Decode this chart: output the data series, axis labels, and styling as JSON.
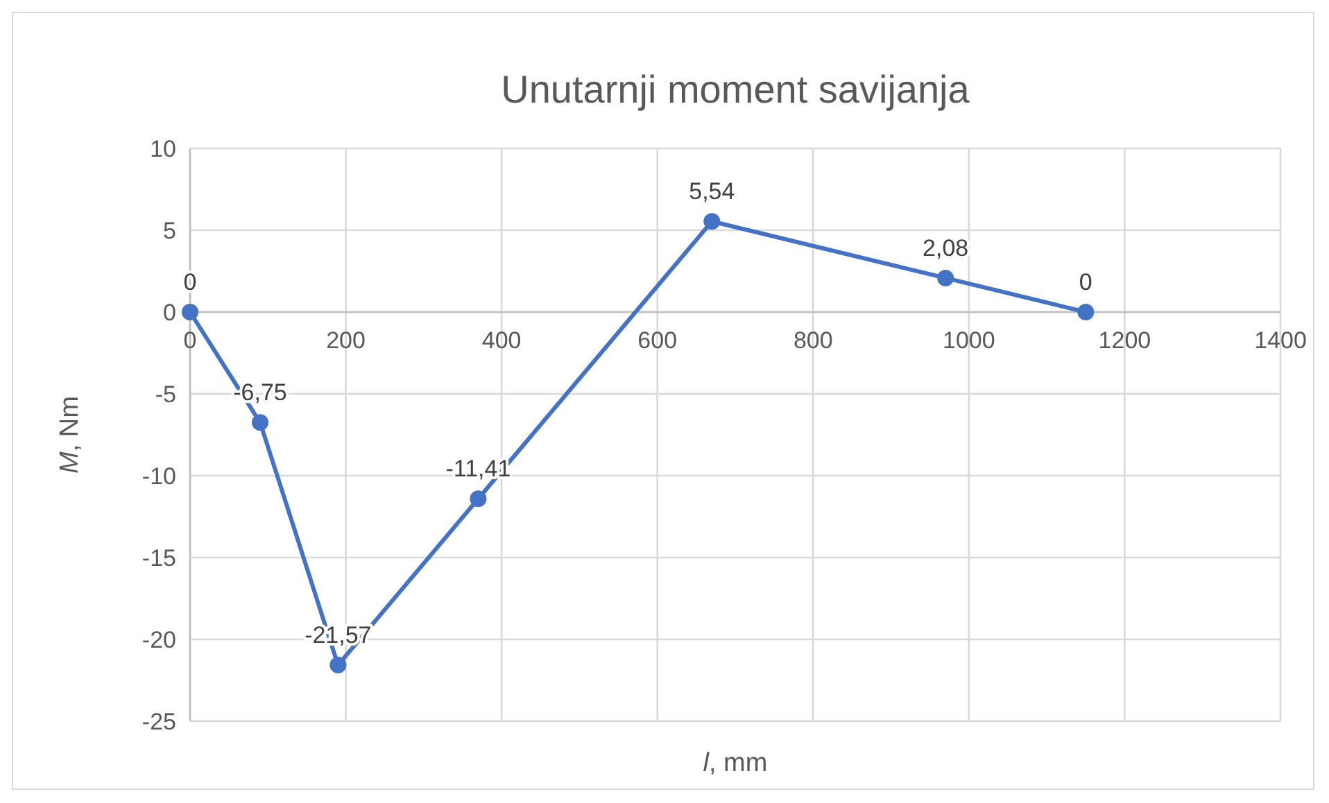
{
  "chart_data": {
    "type": "line",
    "title": "Unutarnji moment savijanja",
    "xlabel": "l, mm",
    "ylabel": "M, Nm",
    "x": [
      0,
      90,
      190,
      370,
      670,
      970,
      1150
    ],
    "series": [
      {
        "color": "#4472c4",
        "values": [
          0,
          -6.75,
          -21.57,
          -11.41,
          5.54,
          2.08,
          0
        ],
        "value_labels": [
          "0",
          "-6,75",
          "-21,57",
          "-11,41",
          "5,54",
          "2,08",
          "0"
        ]
      }
    ],
    "xlim": [
      0,
      1400
    ],
    "xticks": [
      0,
      200,
      400,
      600,
      800,
      1000,
      1200,
      1400
    ],
    "ylim": [
      -25,
      10
    ],
    "yticks": [
      -25,
      -20,
      -15,
      -10,
      -5,
      0,
      5,
      10
    ],
    "grid": true,
    "marker": "circle"
  }
}
